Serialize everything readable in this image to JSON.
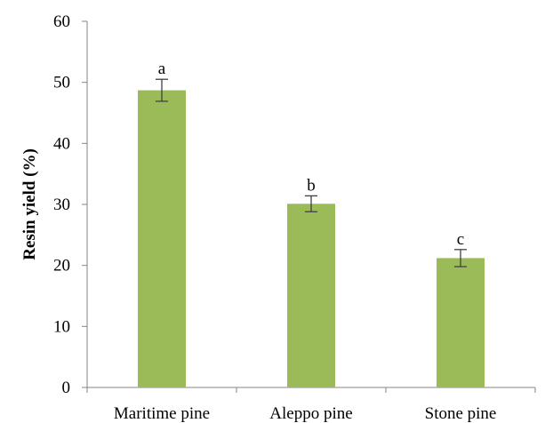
{
  "chart_data": {
    "type": "bar",
    "title": "",
    "xlabel": "",
    "ylabel": "Resin yield (%)",
    "categories": [
      "Maritime pine",
      "Aleppo pine",
      "Stone pine"
    ],
    "values": [
      48.7,
      30.1,
      21.2
    ],
    "errors": [
      1.8,
      1.3,
      1.4
    ],
    "significance_labels": [
      "a",
      "b",
      "c"
    ],
    "ylim": [
      0,
      60
    ],
    "yticks": [
      "0",
      "10",
      "20",
      "30",
      "40",
      "50",
      "60"
    ],
    "grid": false,
    "legend": "none",
    "colors": {
      "bar": "#9BBB59",
      "axis": "#868686",
      "error_bar": "#404040"
    }
  }
}
